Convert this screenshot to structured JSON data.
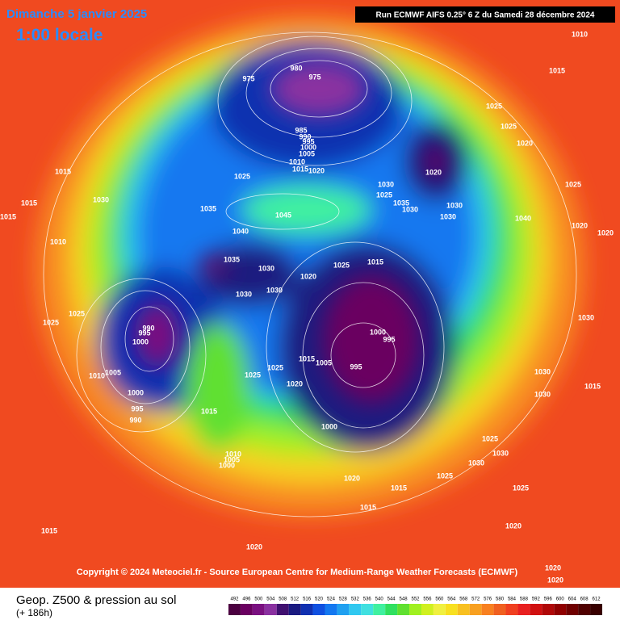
{
  "header": {
    "date": "Dimanche 5 janvier 2025",
    "time": "1:00 locale",
    "run": "Run ECMWF AIFS 0.25° 6 Z du Samedi 28 décembre 2024"
  },
  "map": {
    "pressure_labels": [
      "1010",
      "1015",
      "975",
      "980",
      "975",
      "1025",
      "1025",
      "1020",
      "985",
      "990",
      "995",
      "1000",
      "1005",
      "1010",
      "1015",
      "1020",
      "1015",
      "1025",
      "1020",
      "1025",
      "1030",
      "1025",
      "1035",
      "1030",
      "1015",
      "1030",
      "1035",
      "1045",
      "1030",
      "1030",
      "1040",
      "1015",
      "1020",
      "1020",
      "1040",
      "1010",
      "1035",
      "1030",
      "1020",
      "1025",
      "1015",
      "1030",
      "1030",
      "1025",
      "1025",
      "990",
      "995",
      "1000",
      "1000",
      "995",
      "1015",
      "1005",
      "995",
      "1010",
      "1005",
      "1025",
      "1025",
      "1020",
      "1000",
      "995",
      "990",
      "1015",
      "1030",
      "1015",
      "1000",
      "1025",
      "1030",
      "1010",
      "1005",
      "1000",
      "1030",
      "1020",
      "1015",
      "1025",
      "1025",
      "1015",
      "1020",
      "1015",
      "1020",
      "1020",
      "1020",
      "1030",
      "1030"
    ],
    "copyright": "Copyright © 2024 Meteociel.fr - Source European Centre for Medium-Range Weather Forecasts (ECMWF)"
  },
  "legend": {
    "title": "Geop. Z500 & pression au sol",
    "lead": "(+ 186h)",
    "ticks": [
      492,
      496,
      500,
      504,
      508,
      512,
      516,
      520,
      524,
      528,
      532,
      536,
      540,
      544,
      548,
      552,
      556,
      560,
      564,
      568,
      572,
      576,
      580,
      584,
      588,
      592,
      596,
      600,
      604,
      608,
      612
    ],
    "colors": [
      "#4b0040",
      "#6a0060",
      "#7a1080",
      "#8a30a0",
      "#401070",
      "#1a1a80",
      "#1030b0",
      "#1050e0",
      "#1478f0",
      "#20a0f0",
      "#30c8f0",
      "#40e0e0",
      "#40f0a0",
      "#30e060",
      "#60e030",
      "#a0f020",
      "#d0f020",
      "#f0f040",
      "#f8e020",
      "#f8c020",
      "#f8a020",
      "#f88020",
      "#f06020",
      "#f04020",
      "#e82020",
      "#d01010",
      "#b00808",
      "#900000",
      "#700000",
      "#500000",
      "#380000"
    ]
  }
}
